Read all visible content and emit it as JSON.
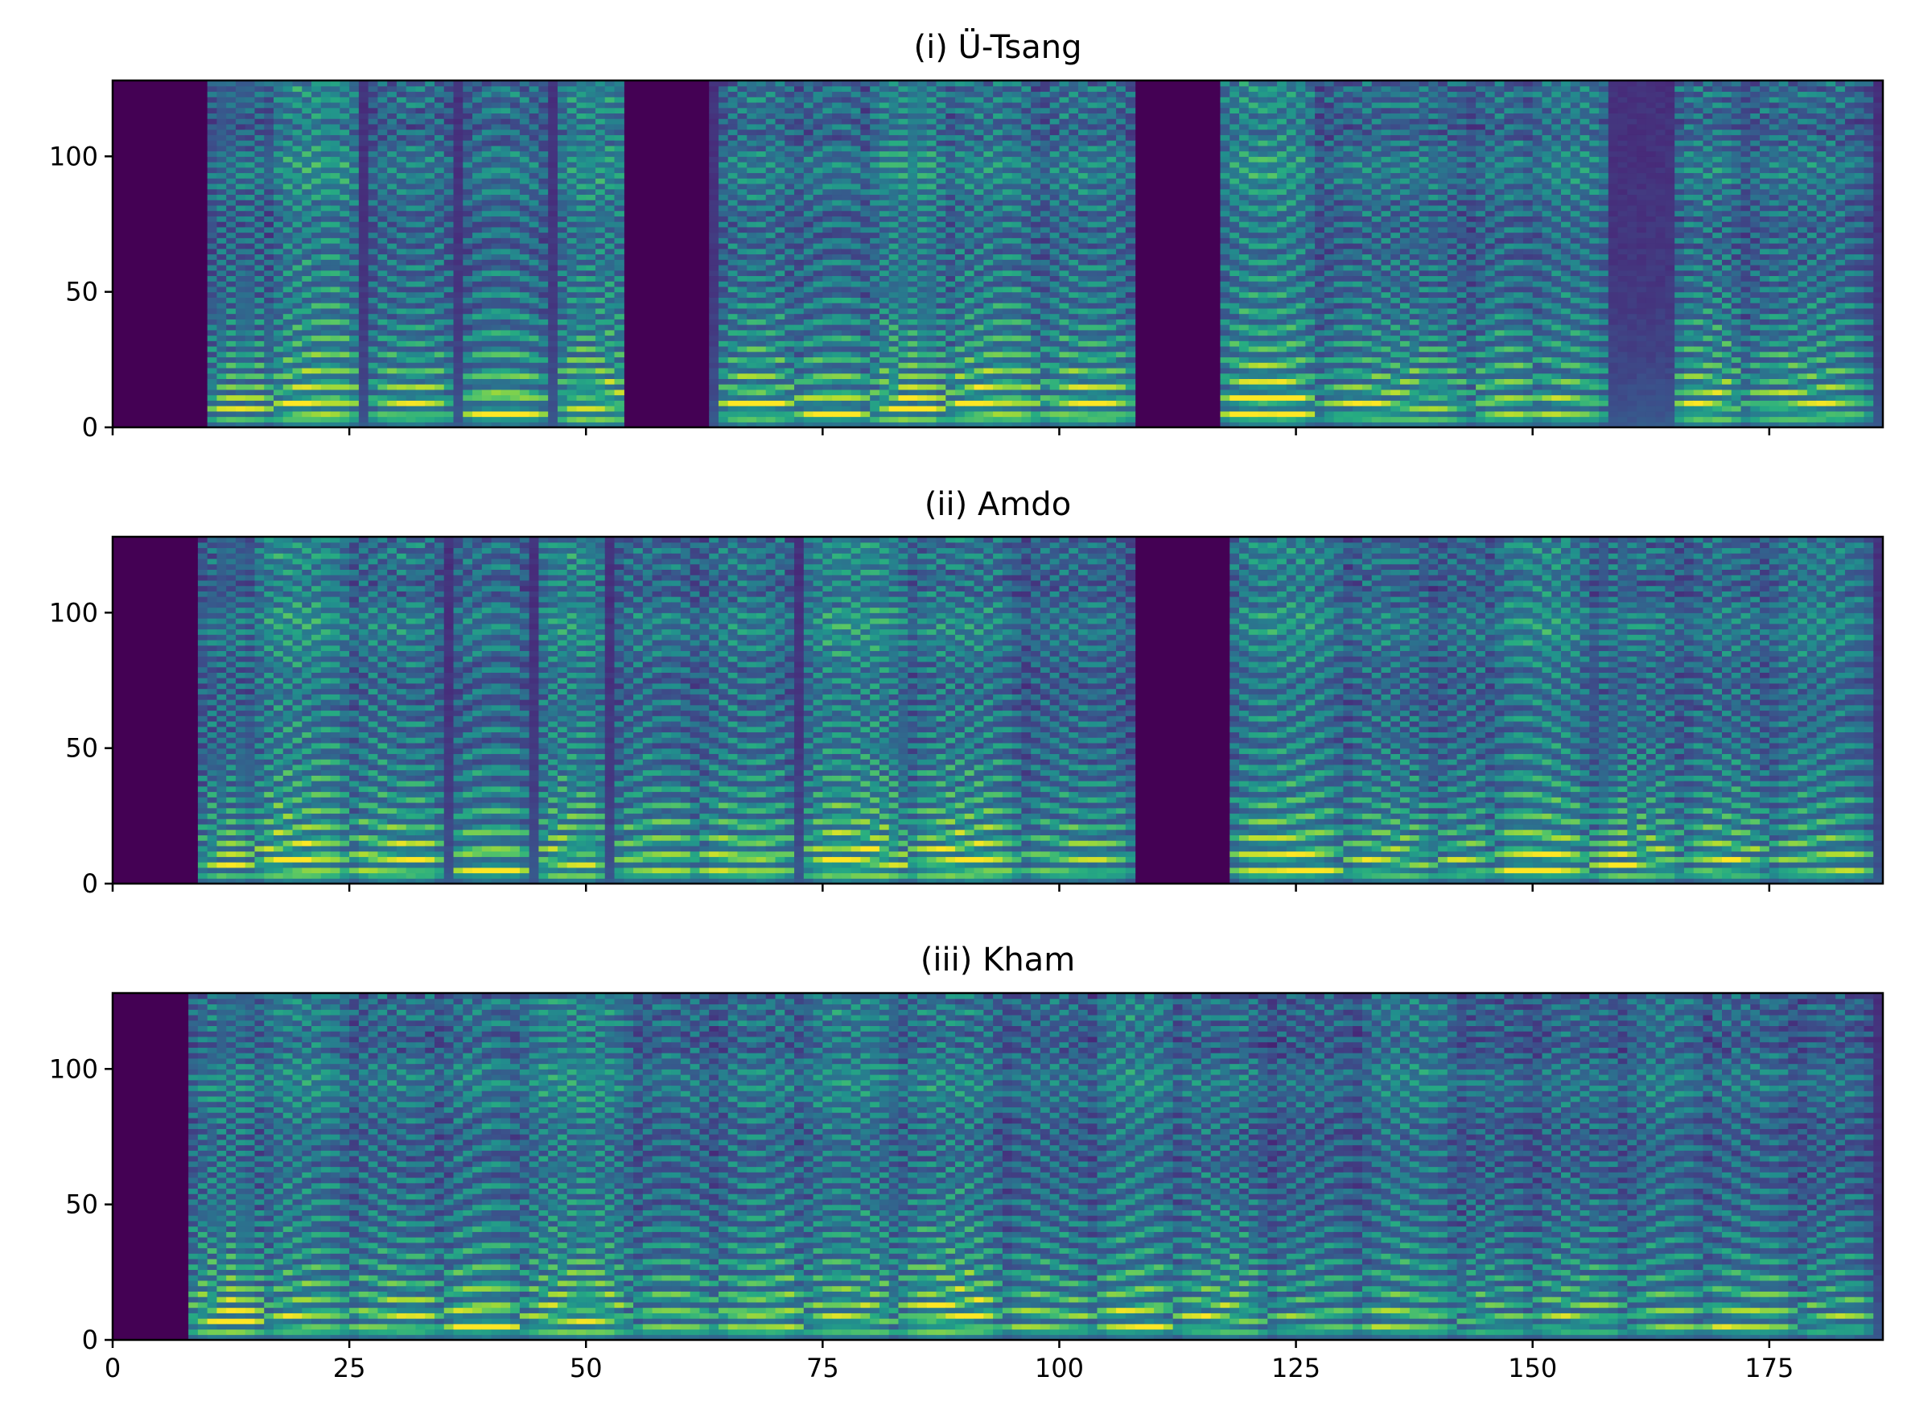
{
  "chart_data": [
    {
      "type": "heatmap",
      "title": "(i) Ü-Tsang",
      "xlim": [
        0,
        187
      ],
      "ylim": [
        0,
        128
      ],
      "x_ticks": [
        "0",
        "25",
        "50",
        "75",
        "100",
        "125",
        "150",
        "175"
      ],
      "y_ticks": [
        "0",
        "50",
        "100"
      ],
      "x_tick_labels_shown": false,
      "colormap": "viridis",
      "silence_frames": [
        [
          0,
          10
        ],
        [
          54,
          63
        ],
        [
          108,
          117
        ]
      ],
      "syllables": [
        [
          10,
          17,
          0.85
        ],
        [
          17,
          26,
          1.0
        ],
        [
          27,
          36,
          0.9
        ],
        [
          37,
          46,
          0.9
        ],
        [
          47,
          55,
          0.95
        ],
        [
          64,
          72,
          0.95
        ],
        [
          72,
          80,
          0.9
        ],
        [
          80,
          88,
          0.95
        ],
        [
          88,
          98,
          1.0
        ],
        [
          98,
          108,
          0.95
        ],
        [
          117,
          127,
          1.0
        ],
        [
          127,
          144,
          0.9
        ],
        [
          144,
          150,
          0.9
        ],
        [
          150,
          158,
          0.85
        ],
        [
          165,
          172,
          0.95
        ],
        [
          172,
          186,
          0.9
        ]
      ]
    },
    {
      "type": "heatmap",
      "title": "(ii) Amdo",
      "xlim": [
        0,
        187
      ],
      "ylim": [
        0,
        128
      ],
      "x_ticks": [
        "0",
        "25",
        "50",
        "75",
        "100",
        "125",
        "150",
        "175"
      ],
      "y_ticks": [
        "0",
        "50",
        "100"
      ],
      "x_tick_labels_shown": false,
      "colormap": "viridis",
      "silence_frames": [
        [
          0,
          9
        ],
        [
          108,
          118
        ]
      ],
      "syllables": [
        [
          9,
          15,
          0.85
        ],
        [
          15,
          25,
          1.0
        ],
        [
          25,
          35,
          0.95
        ],
        [
          36,
          44,
          0.9
        ],
        [
          45,
          52,
          0.95
        ],
        [
          53,
          62,
          0.9
        ],
        [
          62,
          72,
          0.95
        ],
        [
          73,
          84,
          1.0
        ],
        [
          84,
          96,
          1.0
        ],
        [
          96,
          108,
          0.85
        ],
        [
          118,
          130,
          0.95
        ],
        [
          130,
          140,
          0.9
        ],
        [
          140,
          146,
          0.85
        ],
        [
          146,
          156,
          0.95
        ],
        [
          156,
          166,
          0.9
        ],
        [
          166,
          175,
          0.9
        ],
        [
          175,
          186,
          0.85
        ]
      ]
    },
    {
      "type": "heatmap",
      "title": "(iii) Kham",
      "xlim": [
        0,
        187
      ],
      "ylim": [
        0,
        128
      ],
      "x_ticks": [
        "0",
        "25",
        "50",
        "75",
        "100",
        "125",
        "150",
        "175"
      ],
      "y_ticks": [
        "0",
        "50",
        "100"
      ],
      "x_tick_labels_shown": true,
      "colormap": "viridis",
      "silence_frames": [
        [
          0,
          8
        ]
      ],
      "syllables": [
        [
          8,
          16,
          0.95
        ],
        [
          16,
          25,
          0.9
        ],
        [
          25,
          35,
          0.9
        ],
        [
          35,
          43,
          0.95
        ],
        [
          43,
          55,
          0.95
        ],
        [
          55,
          64,
          0.85
        ],
        [
          64,
          73,
          0.95
        ],
        [
          73,
          83,
          0.9
        ],
        [
          83,
          94,
          1.0
        ],
        [
          94,
          104,
          0.85
        ],
        [
          104,
          112,
          0.9
        ],
        [
          112,
          122,
          0.9
        ],
        [
          122,
          132,
          0.8
        ],
        [
          132,
          142,
          0.85
        ],
        [
          142,
          150,
          0.8
        ],
        [
          150,
          160,
          0.85
        ],
        [
          160,
          168,
          0.8
        ],
        [
          168,
          178,
          0.85
        ],
        [
          178,
          186,
          0.8
        ]
      ]
    }
  ]
}
